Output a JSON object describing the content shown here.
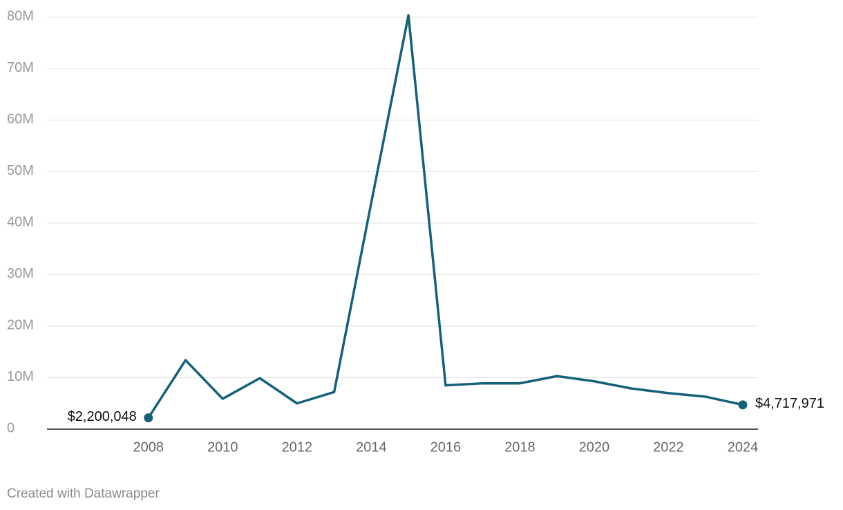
{
  "chart_data": {
    "type": "line",
    "x": [
      2008,
      2009,
      2010,
      2011,
      2012,
      2013,
      2014,
      2015,
      2016,
      2017,
      2018,
      2019,
      2020,
      2021,
      2022,
      2023,
      2024
    ],
    "values": [
      2200048,
      13400000,
      5900000,
      9900000,
      5000000,
      7200000,
      44000000,
      80400000,
      8500000,
      8900000,
      8900000,
      10300000,
      9300000,
      7900000,
      7000000,
      6300000,
      4717971
    ],
    "value_labels": [
      "$2,200,048",
      null,
      null,
      null,
      null,
      null,
      null,
      null,
      null,
      null,
      null,
      null,
      null,
      null,
      null,
      null,
      "$4,717,971"
    ],
    "color": "#15607a",
    "xlim": [
      2005.27,
      2024.41
    ],
    "xticks": [
      2008,
      2010,
      2012,
      2014,
      2016,
      2018,
      2020,
      2022,
      2024
    ],
    "ylim": [
      0,
      80000000
    ],
    "yticks": [
      0,
      {
        "value": 10000000,
        "label": "10M"
      },
      {
        "value": 20000000,
        "label": "20M"
      },
      {
        "value": 30000000,
        "label": "30M"
      },
      {
        "value": 40000000,
        "label": "40M"
      },
      {
        "value": 50000000,
        "label": "50M"
      },
      {
        "value": 60000000,
        "label": "60M"
      },
      {
        "value": 70000000,
        "label": "70M"
      },
      {
        "value": 80000000,
        "label": "80M"
      }
    ],
    "grid": true,
    "footer": "Created with Datawrapper"
  }
}
